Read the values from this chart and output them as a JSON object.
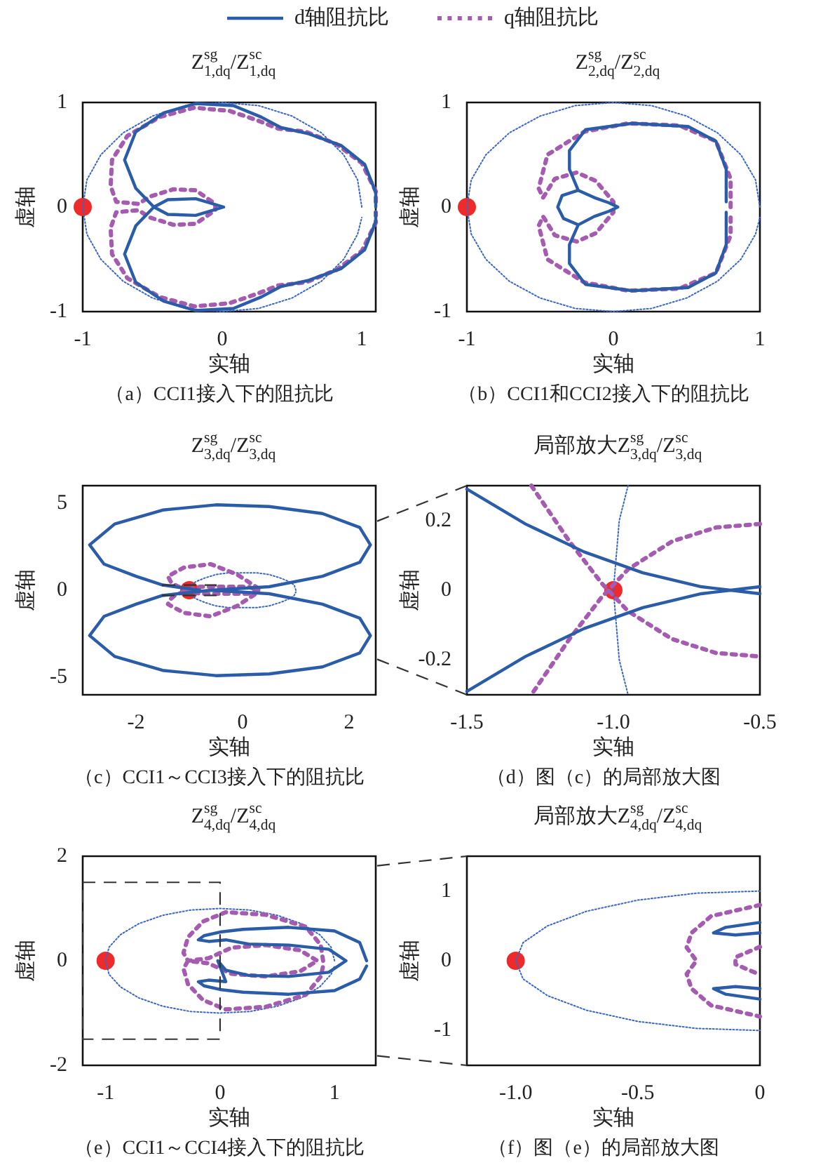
{
  "chart_data": [
    {
      "type": "line",
      "title": "Z$^{sg}$$_{1,dq}$/Z$^{sc}$$_{1,dq}$",
      "xlabel": "实轴",
      "ylabel": "虚轴",
      "legend": "top",
      "xlim": [
        -1,
        1.1
      ],
      "ylim": [
        -1,
        1
      ],
      "xticks": [
        -1,
        0,
        1
      ],
      "yticks": [
        -1,
        0,
        1
      ],
      "annotations": [
        "（a）CCI1接入下的阻抗比"
      ],
      "series": [
        {
          "name": "d轴阻抗比",
          "color": "#2b5ca8",
          "line_style": "solid",
          "x": [
            1.1,
            1.1,
            1.02,
            0.85,
            0.62,
            0.42,
            0.28,
            0.08,
            -0.19,
            -0.42,
            -0.62,
            -0.7,
            -0.62,
            -0.49,
            -0.39,
            -0.19,
            0.01,
            -0.19,
            -0.39,
            -0.49,
            -0.62,
            -0.7,
            -0.62,
            -0.42,
            -0.19,
            0.08,
            0.28,
            0.42,
            0.62,
            0.85,
            1.02,
            1.1,
            1.1
          ],
          "values": [
            0,
            0.14,
            0.41,
            0.59,
            0.7,
            0.76,
            0.86,
            0.97,
            0.99,
            0.9,
            0.72,
            0.45,
            0.18,
            0,
            -0.07,
            -0.08,
            0,
            0.08,
            0.07,
            0,
            -0.18,
            -0.45,
            -0.72,
            -0.9,
            -0.99,
            -0.97,
            -0.86,
            -0.76,
            -0.7,
            -0.59,
            -0.41,
            -0.14,
            -0.05
          ]
        },
        {
          "name": "q轴阻抗比",
          "color": "#a55bb0",
          "line_style": "dotted",
          "x": [
            1.1,
            1.1,
            1.0,
            0.82,
            0.6,
            0.4,
            0.25,
            0.05,
            -0.2,
            -0.45,
            -0.68,
            -0.79,
            -0.8,
            -0.76,
            -0.6,
            -0.52,
            -0.35,
            -0.19,
            -0.05,
            -0.05,
            -0.19,
            -0.35,
            -0.52,
            -0.6,
            -0.76,
            -0.8,
            -0.79,
            -0.68,
            -0.45,
            -0.2,
            0.05,
            0.25,
            0.4,
            0.6,
            0.82,
            1.0,
            1.1,
            1.1
          ],
          "values": [
            0.05,
            0.15,
            0.42,
            0.6,
            0.72,
            0.75,
            0.83,
            0.92,
            0.95,
            0.86,
            0.68,
            0.45,
            0.2,
            0.05,
            0.03,
            0.1,
            0.17,
            0.16,
            0.03,
            -0.03,
            -0.16,
            -0.17,
            -0.1,
            -0.03,
            -0.05,
            -0.2,
            -0.45,
            -0.68,
            -0.86,
            -0.95,
            -0.92,
            -0.83,
            -0.75,
            -0.72,
            -0.6,
            -0.42,
            -0.15,
            -0.05
          ]
        },
        {
          "color": "#3a66c4",
          "line_style": "dotted",
          "x": [
            1,
            0.97,
            0.87,
            0.71,
            0.5,
            0.26,
            0,
            -0.26,
            -0.5,
            -0.71,
            -0.87,
            -0.97,
            -1,
            -0.97,
            -0.87,
            -0.71,
            -0.5,
            -0.26,
            0,
            0.26,
            0.5,
            0.71,
            0.87,
            0.97,
            1
          ],
          "values": [
            0,
            0.26,
            0.5,
            0.71,
            0.87,
            0.97,
            1,
            0.97,
            0.87,
            0.71,
            0.5,
            0.26,
            0,
            -0.26,
            -0.5,
            -0.71,
            -0.87,
            -0.97,
            -1,
            -0.97,
            -0.87,
            -0.71,
            -0.5,
            -0.26,
            -0.1
          ]
        },
        {
          "type": "scatter",
          "color": "#ee2a2a",
          "marker": "circle",
          "x": [
            -1
          ],
          "values": [
            0
          ]
        }
      ]
    },
    {
      "type": "line",
      "title": "Z$^{sg}$$_{2,dq}$/Z$^{sc}$$_{2,dq}$",
      "xlabel": "实轴",
      "ylabel": "虚轴",
      "xlim": [
        -1,
        1
      ],
      "ylim": [
        -1,
        1
      ],
      "xticks": [
        -1,
        0,
        1
      ],
      "yticks": [
        -1,
        0,
        1
      ],
      "annotations": [
        "（b）CCI1和CCI2接入下的阻抗比"
      ],
      "series": [
        {
          "color": "#2b5ca8",
          "line_style": "solid",
          "x": [
            0.77,
            0.77,
            0.7,
            0.51,
            0.13,
            -0.19,
            -0.3,
            -0.3,
            -0.24,
            -0.35,
            -0.38,
            -0.34,
            -0.24,
            -0.13,
            -0.03,
            0.03,
            -0.03,
            -0.13,
            -0.24,
            -0.35,
            -0.38,
            -0.34,
            -0.24,
            -0.3,
            -0.3,
            -0.19,
            0.13,
            0.51,
            0.7,
            0.77,
            0.77
          ],
          "values": [
            0.05,
            0.36,
            0.63,
            0.77,
            0.8,
            0.74,
            0.54,
            0.36,
            0.16,
            0.11,
            0,
            -0.11,
            -0.17,
            -0.09,
            -0.04,
            0,
            0.04,
            0.09,
            0.16,
            0.11,
            0,
            -0.11,
            -0.17,
            -0.36,
            -0.54,
            -0.74,
            -0.8,
            -0.77,
            -0.63,
            -0.36,
            -0.05
          ]
        },
        {
          "color": "#a55bb0",
          "line_style": "dotted",
          "x": [
            0.8,
            0.8,
            0.7,
            0.45,
            0.1,
            -0.2,
            -0.45,
            -0.51,
            -0.48,
            -0.4,
            -0.25,
            -0.12,
            0,
            0,
            -0.12,
            -0.25,
            -0.4,
            -0.48,
            -0.51,
            -0.45,
            -0.2,
            0.1,
            0.45,
            0.7,
            0.8,
            0.8
          ],
          "values": [
            0,
            0.27,
            0.63,
            0.78,
            0.8,
            0.72,
            0.5,
            0.18,
            0.09,
            0.27,
            0.33,
            0.25,
            0.05,
            -0.05,
            -0.25,
            -0.33,
            -0.27,
            -0.09,
            -0.18,
            -0.5,
            -0.72,
            -0.8,
            -0.78,
            -0.63,
            -0.27,
            -0.1
          ]
        },
        {
          "color": "#3a66c4",
          "line_style": "dotted",
          "x": [
            1,
            0.97,
            0.87,
            0.71,
            0.5,
            0.26,
            0,
            -0.26,
            -0.5,
            -0.71,
            -0.87,
            -0.97,
            -1,
            -0.97,
            -0.87,
            -0.71,
            -0.5,
            -0.26,
            0,
            0.26,
            0.5,
            0.71,
            0.87,
            0.97,
            1
          ],
          "values": [
            0,
            0.26,
            0.5,
            0.71,
            0.87,
            0.97,
            1,
            0.97,
            0.87,
            0.71,
            0.5,
            0.26,
            0,
            -0.26,
            -0.5,
            -0.71,
            -0.87,
            -0.97,
            -1,
            -0.97,
            -0.87,
            -0.71,
            -0.5,
            -0.26,
            -0.1
          ]
        },
        {
          "type": "scatter",
          "color": "#ee2a2a",
          "marker": "circle",
          "x": [
            -1
          ],
          "values": [
            0
          ]
        }
      ]
    },
    {
      "type": "line",
      "title": "Z$^{sg}$$_{3,dq}$/Z$^{sc}$$_{3,dq}$",
      "xlabel": "实轴",
      "ylabel": "虚轴",
      "xlim": [
        -3,
        2.5
      ],
      "ylim": [
        -6,
        6
      ],
      "xticks": [
        -2,
        0,
        2
      ],
      "yticks": [
        -5,
        0,
        5
      ],
      "annotations": [
        "（c）CCI1～CCI3接入下的阻抗比"
      ],
      "series": [
        {
          "color": "#2b5ca8",
          "line_style": "solid",
          "x": [
            -0.6,
            0.5,
            1.5,
            2.2,
            2.4,
            2.2,
            1.5,
            0.5,
            -0.5,
            -1.5,
            -2.4,
            -2.87,
            -2.6,
            -2.0,
            -1.5,
            -0.6,
            0.5,
            1.5,
            2.2,
            2.4,
            2.2,
            1.5,
            0.5,
            -0.5,
            -1.5,
            -2.4,
            -2.87,
            -2.6,
            -2.0,
            -1.5,
            -0.8
          ],
          "values": [
            0,
            -0.2,
            -0.8,
            -1.6,
            -2.6,
            -3.6,
            -4.4,
            -4.8,
            -4.9,
            -4.6,
            -3.8,
            -2.6,
            -1.5,
            -0.8,
            -0.3,
            0,
            0.2,
            0.8,
            1.6,
            2.6,
            3.6,
            4.4,
            4.8,
            4.9,
            4.6,
            3.8,
            2.6,
            1.5,
            0.8,
            0.3,
            0
          ]
        },
        {
          "color": "#a55bb0",
          "line_style": "dotted",
          "x": [
            0.3,
            -0.1,
            -0.6,
            -1.1,
            -1.4,
            -1.35,
            -1.27,
            -1.05,
            -0.8,
            -0.6,
            -0.3,
            0.1,
            0.3,
            0.1,
            -0.3,
            -0.6,
            -0.8,
            -1.05,
            -1.27,
            -1.35,
            -1.4,
            -1.1,
            -0.6,
            -0.1,
            0.3
          ],
          "values": [
            0.1,
            0.9,
            1.5,
            1.3,
            0.8,
            0.5,
            0.3,
            0,
            -0.2,
            -0.2,
            -0.2,
            -0.2,
            0,
            0.2,
            0.2,
            0.2,
            0.2,
            0,
            -0.3,
            -0.5,
            -0.8,
            -1.3,
            -1.5,
            -0.9,
            -0.1
          ]
        },
        {
          "color": "#3a66c4",
          "line_style": "dotted",
          "x": [
            1,
            0.97,
            0.87,
            0.71,
            0.5,
            0.26,
            0,
            -0.26,
            -0.5,
            -0.71,
            -0.87,
            -0.97,
            -1,
            -0.97,
            -0.87,
            -0.71,
            -0.5,
            -0.26,
            0,
            0.26,
            0.5,
            0.71,
            0.87,
            0.97,
            1
          ],
          "values": [
            0,
            0.3,
            0.5,
            0.7,
            0.9,
            1,
            1,
            1,
            0.9,
            0.7,
            0.5,
            0.3,
            0,
            -0.3,
            -0.5,
            -0.7,
            -0.9,
            -1,
            -1,
            -1,
            -0.9,
            -0.7,
            -0.5,
            -0.3,
            -0.1
          ]
        },
        {
          "type": "scatter",
          "color": "#ee2a2a",
          "marker": "circle",
          "x": [
            -1
          ],
          "values": [
            0
          ]
        }
      ]
    },
    {
      "type": "line",
      "title": "局部放大Z$^{sg}$$_{3,dq}$/Z$^{sc}$$_{3,dq}$",
      "xlabel": "实轴",
      "ylabel": "虚轴",
      "xlim": [
        -1.5,
        -0.5
      ],
      "ylim": [
        -0.3,
        0.3
      ],
      "xticks": [
        -1.5,
        {
          "value": -1,
          "label": "-1.0"
        },
        -0.5
      ],
      "yticks": [
        -0.2,
        0,
        0.2
      ],
      "annotations": [
        "（d）图（c）的局部放大图"
      ],
      "series": [
        {
          "color": "#2b5ca8",
          "line_style": "solid",
          "x": [
            -1.5,
            -1.3,
            -1.1,
            -0.9,
            -0.7,
            -0.6,
            -0.5,
            null,
            -0.5,
            -0.6,
            -0.7,
            -0.9,
            -1.1,
            -1.3,
            -1.5
          ],
          "values": [
            0.29,
            0.19,
            0.11,
            0.05,
            0.01,
            0,
            -0.01,
            null,
            0.01,
            0,
            -0.01,
            -0.05,
            -0.11,
            -0.19,
            -0.29
          ]
        },
        {
          "color": "#a55bb0",
          "line_style": "dotted",
          "x": [
            -1.28,
            -1.15,
            -1.04,
            -0.95,
            -0.8,
            -0.65,
            -0.5,
            null,
            -0.5,
            -0.65,
            -0.8,
            -0.95,
            -1.04,
            -1.15,
            -1.28
          ],
          "values": [
            0.3,
            0.14,
            0.02,
            -0.06,
            -0.14,
            -0.18,
            -0.19,
            null,
            0.19,
            0.18,
            0.14,
            0.06,
            -0.02,
            -0.14,
            -0.3
          ]
        },
        {
          "color": "#3a66c4",
          "line_style": "dotted",
          "x": [
            -0.95,
            -0.98,
            -0.99,
            -1,
            -0.99,
            -0.98,
            -0.95
          ],
          "values": [
            0.3,
            0.2,
            0.1,
            0,
            -0.1,
            -0.2,
            -0.3
          ]
        },
        {
          "type": "scatter",
          "color": "#ee2a2a",
          "marker": "circle",
          "x": [
            -1
          ],
          "values": [
            0
          ]
        }
      ]
    },
    {
      "type": "line",
      "title": "Z$^{sg}$$_{4,dq}$/Z$^{sc}$$_{4,dq}$",
      "xlabel": "实轴",
      "ylabel": "虚轴",
      "xlim": [
        -1.2,
        1.36
      ],
      "ylim": [
        -2,
        2
      ],
      "xticks": [
        -1,
        0,
        1
      ],
      "yticks": [
        -2,
        0,
        2
      ],
      "annotations": [
        "（e）CCI1～CCI4接入下的阻抗比"
      ],
      "series": [
        {
          "color": "#2b5ca8",
          "line_style": "solid",
          "x": [
            1.28,
            1.22,
            1.0,
            0.6,
            0.2,
            0.0,
            -0.14,
            -0.19,
            -0.1,
            0.05,
            0.25,
            0.6,
            0.95,
            1.1,
            0.95,
            0.6,
            0.25,
            0.05,
            -0.02,
            0.05,
            -0.1,
            -0.19,
            -0.14,
            0.0,
            0.2,
            0.6,
            1.0,
            1.22,
            1.28
          ],
          "values": [
            0,
            0.35,
            0.57,
            0.64,
            0.6,
            0.55,
            0.48,
            0.4,
            0.37,
            0.4,
            0.32,
            0.3,
            0.22,
            0,
            -0.22,
            -0.3,
            -0.28,
            -0.18,
            0,
            -0.4,
            -0.37,
            -0.4,
            -0.48,
            -0.55,
            -0.6,
            -0.64,
            -0.57,
            -0.35,
            -0.1
          ]
        },
        {
          "color": "#a55bb0",
          "line_style": "dotted",
          "x": [
            0.9,
            0.88,
            0.75,
            0.4,
            0.05,
            -0.15,
            -0.28,
            -0.32,
            -0.28,
            -0.1,
            0.1,
            0.4,
            0.7,
            0.85,
            0.7,
            0.4,
            0.1,
            -0.1,
            -0.28,
            -0.32,
            -0.28,
            -0.15,
            0.05,
            0.4,
            0.75,
            0.88,
            0.9
          ],
          "values": [
            0,
            0.3,
            0.65,
            0.88,
            0.93,
            0.75,
            0.45,
            0.15,
            0,
            0.05,
            0.25,
            0.3,
            0.2,
            0,
            -0.2,
            -0.3,
            -0.25,
            -0.05,
            0,
            -0.15,
            -0.45,
            -0.75,
            -0.93,
            -0.88,
            -0.65,
            -0.3,
            -0.1
          ]
        },
        {
          "color": "#3a66c4",
          "line_style": "dotted",
          "x": [
            1,
            0.97,
            0.87,
            0.71,
            0.5,
            0.26,
            0,
            -0.26,
            -0.5,
            -0.71,
            -0.87,
            -0.97,
            -1,
            -0.97,
            -0.87,
            -0.71,
            -0.5,
            -0.26,
            0,
            0.26,
            0.5,
            0.71,
            0.87,
            0.97,
            1
          ],
          "values": [
            0,
            0.26,
            0.5,
            0.71,
            0.87,
            0.97,
            1,
            0.97,
            0.87,
            0.71,
            0.5,
            0.26,
            0,
            -0.26,
            -0.5,
            -0.71,
            -0.87,
            -0.97,
            -1,
            -0.97,
            -0.87,
            -0.71,
            -0.5,
            -0.26,
            -0.1
          ]
        },
        {
          "type": "scatter",
          "color": "#ee2a2a",
          "marker": "circle",
          "x": [
            -1
          ],
          "values": [
            0
          ]
        }
      ]
    },
    {
      "type": "line",
      "title": "局部放大Z$^{sg}$$_{4,dq}$/Z$^{sc}$$_{4,dq}$",
      "xlabel": "实轴",
      "ylabel": "虚轴",
      "xlim": [
        -1.2,
        0
      ],
      "ylim": [
        -1.5,
        1.5
      ],
      "xticks": [
        {
          "value": -1,
          "label": "-1.0"
        },
        -0.5,
        0
      ],
      "yticks": [
        -1,
        0,
        1
      ],
      "annotations": [
        "（f）图（e）的局部放大图"
      ],
      "series": [
        {
          "color": "#2b5ca8",
          "line_style": "solid",
          "x": [
            0,
            -0.14,
            -0.19,
            -0.1,
            0,
            null,
            0,
            -0.1,
            -0.19,
            -0.14,
            0
          ],
          "values": [
            0.55,
            0.48,
            0.4,
            0.37,
            0.4,
            null,
            -0.4,
            -0.37,
            -0.4,
            -0.48,
            -0.55
          ]
        },
        {
          "color": "#a55bb0",
          "line_style": "dotted",
          "x": [
            0,
            -0.2,
            -0.28,
            -0.3,
            -0.26,
            -0.3,
            -0.28,
            -0.2,
            0,
            null,
            0,
            -0.1,
            -0.1,
            0
          ],
          "values": [
            0.8,
            0.64,
            0.4,
            0.19,
            0,
            -0.19,
            -0.4,
            -0.64,
            -0.8,
            null,
            0.2,
            0.05,
            -0.05,
            -0.2
          ]
        },
        {
          "color": "#3a66c4",
          "line_style": "dotted",
          "x": [
            0,
            -0.26,
            -0.5,
            -0.71,
            -0.87,
            -0.97,
            -1,
            -0.97,
            -0.87,
            -0.71,
            -0.5,
            -0.26,
            0
          ],
          "values": [
            1,
            0.97,
            0.87,
            0.71,
            0.5,
            0.26,
            0,
            -0.26,
            -0.5,
            -0.71,
            -0.87,
            -0.97,
            -1
          ]
        },
        {
          "type": "scatter",
          "color": "#ee2a2a",
          "marker": "circle",
          "x": [
            -1
          ],
          "values": [
            0
          ]
        }
      ]
    }
  ]
}
